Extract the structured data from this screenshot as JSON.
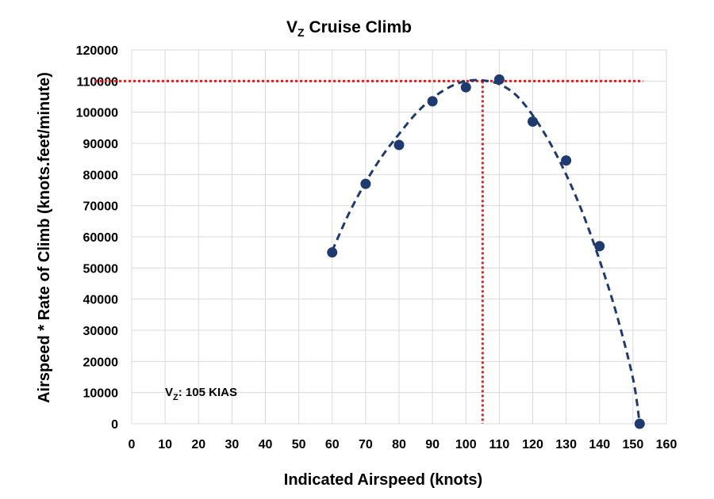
{
  "chart_data": {
    "type": "scatter",
    "title": "Cruise Climb",
    "title_symbol": "V",
    "title_symbol_subscript": "Z",
    "xlabel": "Indicated Airspeed (knots)",
    "ylabel": "Airspeed * Rate of Climb (knots.feet/minute)",
    "xlim": [
      0,
      160
    ],
    "ylim": [
      0,
      120000
    ],
    "x_ticks": [
      0,
      10,
      20,
      30,
      40,
      50,
      60,
      70,
      80,
      90,
      100,
      110,
      120,
      130,
      140,
      150,
      160
    ],
    "y_ticks": [
      0,
      10000,
      20000,
      30000,
      40000,
      50000,
      60000,
      70000,
      80000,
      90000,
      100000,
      110000,
      120000
    ],
    "grid": true,
    "series": [
      {
        "x": [
          60,
          70,
          80,
          90,
          100,
          110,
          120,
          130,
          140,
          152
        ],
        "y": [
          55000,
          77000,
          89500,
          103500,
          108000,
          110500,
          97000,
          84500,
          57000,
          0
        ],
        "color": "#1f3a6e"
      }
    ],
    "trendline": {
      "style": "dashed",
      "color": "#1f3a6e",
      "x": [
        60,
        65,
        70,
        75,
        80,
        85,
        90,
        95,
        100,
        105,
        110,
        115,
        120,
        125,
        130,
        135,
        140,
        145,
        150,
        152
      ],
      "y": [
        55500,
        67500,
        77500,
        86000,
        93000,
        99500,
        104500,
        108000,
        110000,
        110200,
        109000,
        105500,
        99000,
        90500,
        80000,
        67500,
        52500,
        35500,
        14500,
        0
      ]
    },
    "reference_lines": {
      "color": "#e02020",
      "style": "dotted",
      "horizontal_y": 110000,
      "vertical_x": 105
    },
    "annotation": {
      "symbol": "V",
      "symbol_subscript": "Z",
      "text": ": 105 KIAS"
    }
  }
}
